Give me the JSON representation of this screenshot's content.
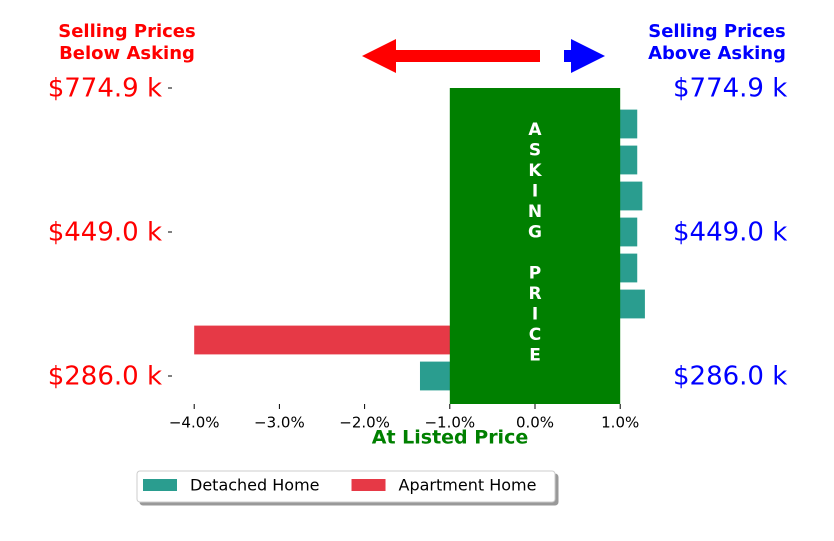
{
  "chart_data": {
    "type": "barh",
    "categories": [
      "$286.0 k",
      null,
      null,
      null,
      "$449.0 k",
      null,
      null,
      null,
      "$774.9 k"
    ],
    "series": [
      {
        "name": "Detached Home",
        "color": "#2a9d8f",
        "values": [
          -1.35,
          null,
          1.29,
          1.2,
          1.2,
          1.26,
          1.2,
          1.2,
          null
        ]
      },
      {
        "name": "Apartment Home",
        "color": "#e63946",
        "values": [
          null,
          -4.0,
          null,
          null,
          null,
          null,
          null,
          null,
          null
        ]
      }
    ],
    "xlim": [
      -4.34,
      1.3
    ],
    "xticks": [
      {
        "value": -4,
        "label": "−4.0%"
      },
      {
        "value": -3,
        "label": "−3.0%"
      },
      {
        "value": -2,
        "label": "−2.0%"
      },
      {
        "value": -1,
        "label": "−1.0%"
      },
      {
        "value": 0,
        "label": "0.0%"
      },
      {
        "value": 1,
        "label": "1.0%"
      }
    ],
    "xlabel": "At Listed Price",
    "band": {
      "x0": -1,
      "x1": 1,
      "label": "ASKING PRICE",
      "color": "green"
    },
    "left_note": [
      "Selling Prices",
      "Below Asking"
    ],
    "right_note": [
      "Selling Prices",
      "Above Asking"
    ],
    "left_label_color": "red",
    "right_label_color": "blue",
    "legend": "bottom"
  }
}
